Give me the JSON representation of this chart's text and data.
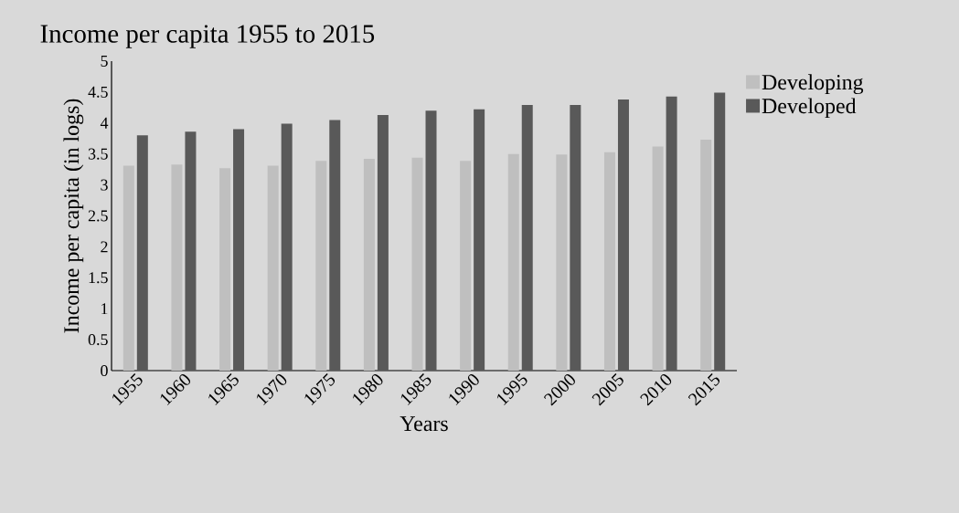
{
  "chart_data": {
    "type": "bar",
    "title": "Income per capita 1955 to 2015",
    "xlabel": "Years",
    "ylabel": "Income per capita (in logs)",
    "categories": [
      "1955",
      "1960",
      "1965",
      "1970",
      "1975",
      "1980",
      "1985",
      "1990",
      "1995",
      "2000",
      "2005",
      "2010",
      "2015"
    ],
    "series": [
      {
        "name": "Developing",
        "color": "#bfbfbf",
        "values": [
          3.31,
          3.33,
          3.27,
          3.31,
          3.39,
          3.42,
          3.44,
          3.39,
          3.5,
          3.49,
          3.53,
          3.62,
          3.73
        ]
      },
      {
        "name": "Developed",
        "color": "#595959",
        "values": [
          3.8,
          3.86,
          3.9,
          3.99,
          4.05,
          4.13,
          4.2,
          4.22,
          4.29,
          4.29,
          4.38,
          4.43,
          4.49
        ]
      }
    ],
    "ylim": [
      0,
      5
    ],
    "yticks": [
      0,
      0.5,
      1,
      1.5,
      2,
      2.5,
      3,
      3.5,
      4,
      4.5,
      5
    ],
    "grid": false,
    "legend": "right"
  }
}
